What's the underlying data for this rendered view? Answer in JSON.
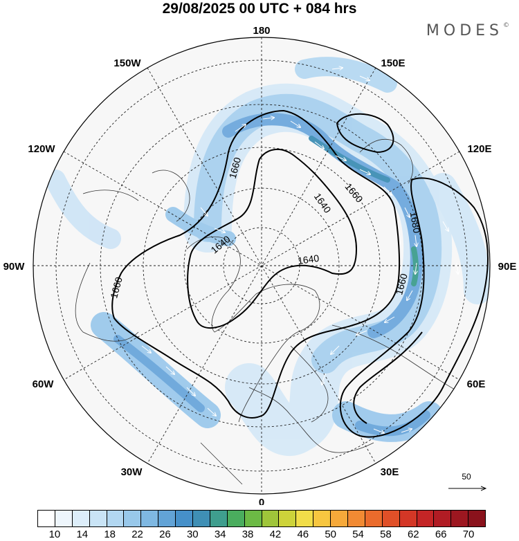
{
  "title": "29/08/2025  00 UTC  + 084 hrs",
  "brand": "MODES",
  "brand_mark": "©",
  "longitude_labels": [
    "180",
    "150E",
    "120E",
    "90E",
    "60E",
    "30E",
    "0",
    "30W",
    "60W",
    "90W",
    "120W",
    "150W"
  ],
  "contour_labels": [
    "1660",
    "1640",
    "1640",
    "1640",
    "1660",
    "1680",
    "1660",
    "1660"
  ],
  "reference_vector": "50",
  "colorbar": {
    "ticks": [
      "10",
      "14",
      "18",
      "22",
      "26",
      "30",
      "34",
      "38",
      "42",
      "46",
      "50",
      "54",
      "58",
      "62",
      "66",
      "70"
    ],
    "colors": [
      "#ffffff",
      "#eef6fc",
      "#ddeefa",
      "#c9e4f6",
      "#b2d7f1",
      "#98c8ea",
      "#7fb8e2",
      "#62a3d6",
      "#4690c9",
      "#3f8fb5",
      "#3f9e8e",
      "#4aad5e",
      "#6cba45",
      "#9fc53a",
      "#cdd33a",
      "#f1dd49",
      "#f7c640",
      "#f6a93a",
      "#f18a33",
      "#ea6b2c",
      "#e05028",
      "#d43726",
      "#c42526",
      "#b11c24",
      "#9d1720",
      "#8a121c"
    ]
  },
  "colors": {
    "land": "#f0f0f0",
    "coast": "#333333",
    "contour": "#000000"
  }
}
